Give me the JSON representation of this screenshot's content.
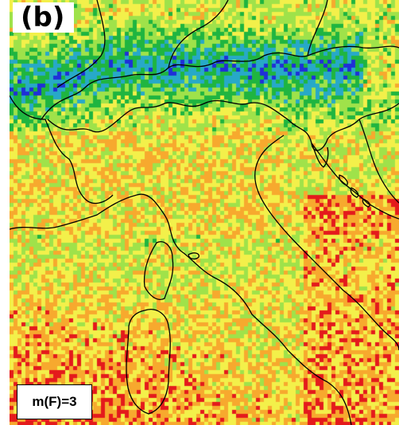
{
  "figure": {
    "panel_label": "(b)",
    "parameter_label": "m(F)=3"
  },
  "legend_colors": [
    "#1f2fd8",
    "#27a9c8",
    "#1fb540",
    "#9fe24a",
    "#f3f04a",
    "#f7a92e",
    "#e41a1c"
  ]
}
